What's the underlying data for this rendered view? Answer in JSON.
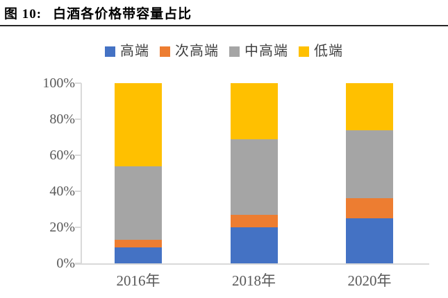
{
  "header": {
    "figure_label": "图 10:",
    "title": "白酒各价格带容量占比"
  },
  "colors": {
    "high_end": "#4472C4",
    "sub_high_end": "#ED7D31",
    "mid_high_end": "#A5A5A5",
    "low_end": "#FFC000",
    "axis": "#D9D9D9",
    "axis_text": "#595959",
    "title_rule": "#262626"
  },
  "chart_data": {
    "type": "bar",
    "stacked": true,
    "title": "白酒各价格带容量占比",
    "categories": [
      "2016年",
      "2018年",
      "2020年"
    ],
    "series": [
      {
        "name": "高端",
        "color": "#4472C4",
        "values": [
          9,
          20,
          25
        ]
      },
      {
        "name": "次高端",
        "color": "#ED7D31",
        "values": [
          4,
          7,
          11
        ]
      },
      {
        "name": "中高端",
        "color": "#A5A5A5",
        "values": [
          41,
          42,
          38
        ]
      },
      {
        "name": "低端",
        "color": "#FFC000",
        "values": [
          46,
          31,
          26
        ]
      }
    ],
    "xlabel": "",
    "ylabel": "",
    "ylim": [
      0,
      100
    ],
    "ytick_step": 20,
    "yticks": [
      "0%",
      "20%",
      "40%",
      "60%",
      "80%",
      "100%"
    ],
    "grid": false,
    "legend_position": "top"
  }
}
